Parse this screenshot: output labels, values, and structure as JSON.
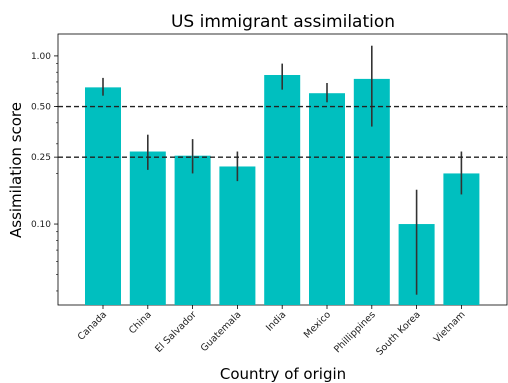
{
  "chart_data": {
    "type": "bar",
    "title": "US immigrant assimilation",
    "xlabel": "Country of origin",
    "ylabel": "Assimilation score",
    "yscale": "log",
    "ylim": [
      0.033,
      1.35
    ],
    "yticks": [
      0.1,
      0.25,
      0.5,
      1.0
    ],
    "ytick_labels": [
      "0.10",
      "0.25",
      "0.50",
      "1.00"
    ],
    "bar_color": "#00bfbf",
    "errorbar_color": "#333333",
    "reference_lines": [
      0.5,
      0.25
    ],
    "categories": [
      "Canada",
      "China",
      "El Salvador",
      "Guatemala",
      "India",
      "Mexico",
      "Phillippines",
      "South Korea",
      "Vietnam"
    ],
    "values": [
      0.65,
      0.27,
      0.255,
      0.22,
      0.77,
      0.6,
      0.73,
      0.1,
      0.2
    ],
    "error_low": [
      0.58,
      0.21,
      0.2,
      0.18,
      0.63,
      0.53,
      0.38,
      0.038,
      0.15
    ],
    "error_high": [
      0.74,
      0.34,
      0.32,
      0.27,
      0.9,
      0.69,
      1.15,
      0.16,
      0.27
    ]
  }
}
